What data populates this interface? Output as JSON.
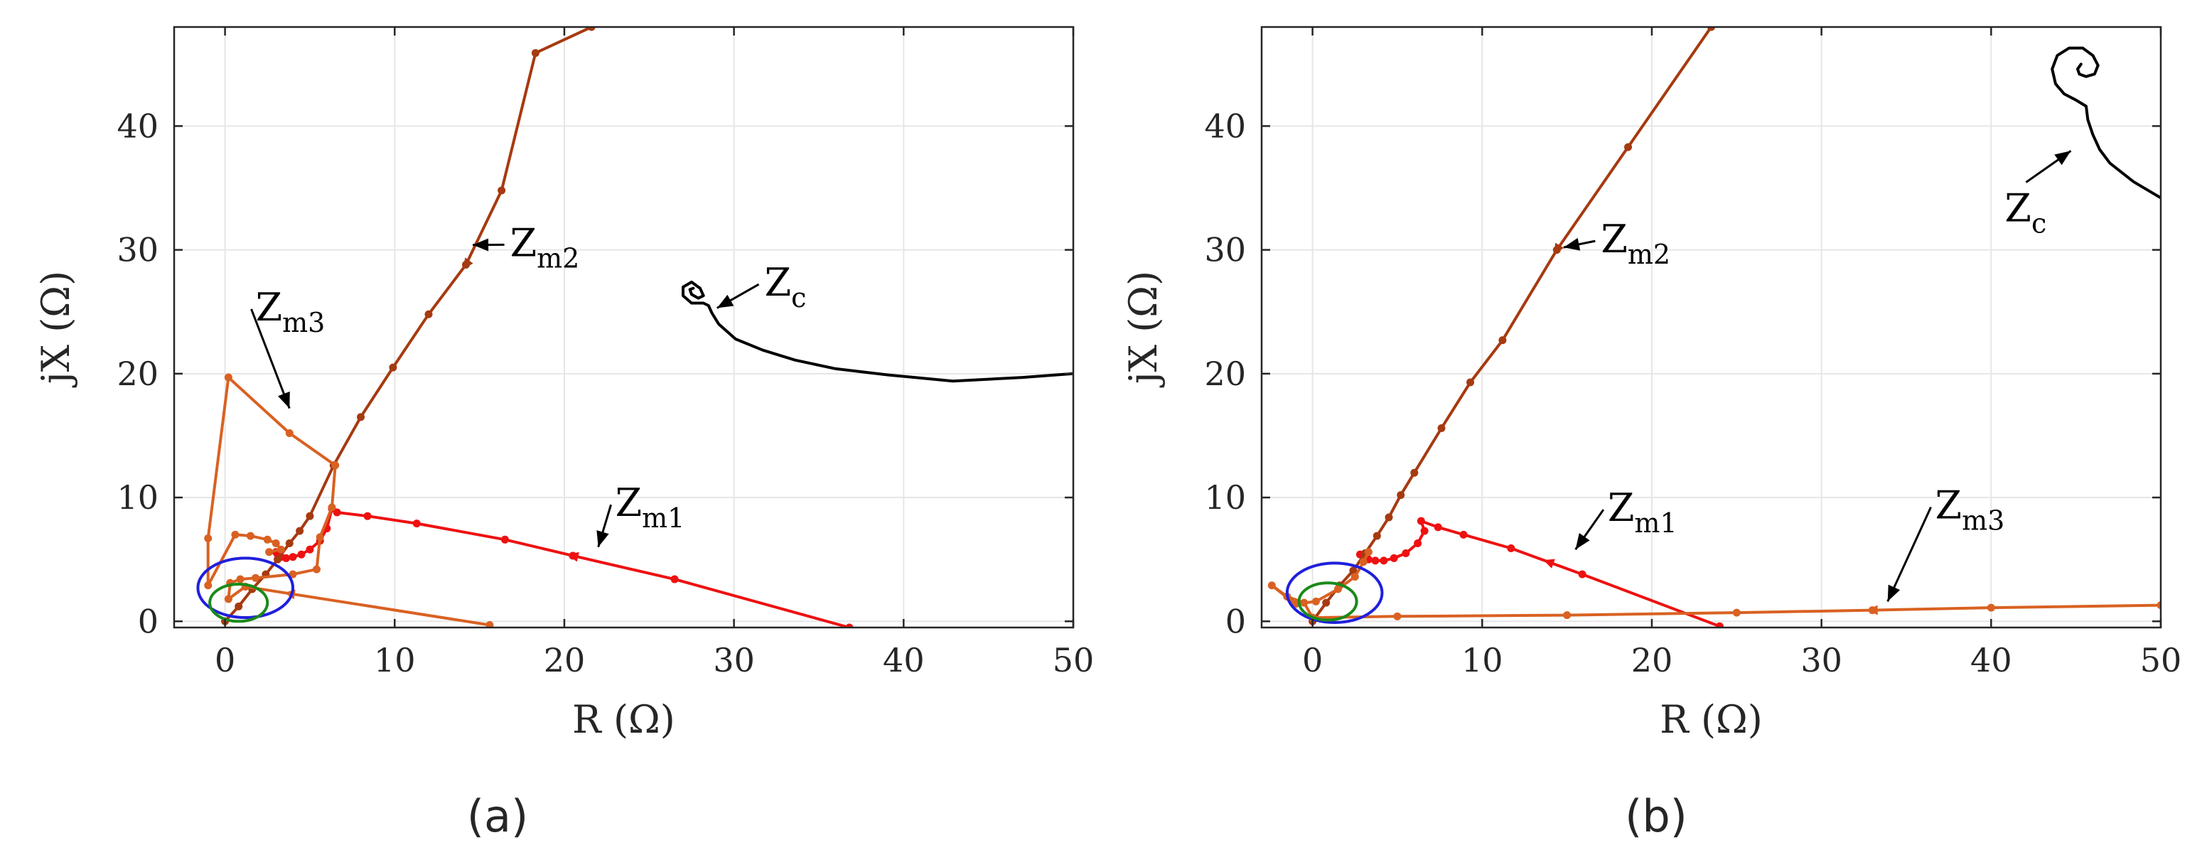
{
  "colors": {
    "Zm1": "#ee1111",
    "Zm2": "#a63a10",
    "Zm3": "#d96122",
    "Zc": "#000000",
    "blue_circle": "#1f1fdd",
    "green_circle": "#1a8a1a",
    "grid": "#e6e6e6",
    "axes": "#262626"
  },
  "chart_data": [
    {
      "type": "line",
      "panel_label": "(a)",
      "xlabel": "R (Ω)",
      "ylabel": "jX (Ω)",
      "xlim": [
        -3,
        50
      ],
      "ylim": [
        -0.5,
        48
      ],
      "xticks": [
        0,
        10,
        20,
        30,
        40,
        50
      ],
      "yticks": [
        0,
        10,
        20,
        30,
        40
      ],
      "grid": true,
      "series": [
        {
          "name": "Z_m1",
          "x": [
            36.8,
            26.5,
            20.5,
            16.5,
            11.3,
            8.4,
            6.6,
            6.3,
            6.0,
            5.6,
            5.0,
            4.5,
            4.0,
            3.6,
            3.3,
            3.1,
            3.0
          ],
          "y": [
            -0.5,
            3.4,
            5.3,
            6.6,
            7.9,
            8.5,
            8.8,
            9.1,
            7.5,
            6.5,
            5.8,
            5.4,
            5.2,
            5.1,
            5.2,
            5.4,
            5.6
          ],
          "direction_arrow_x": 20.5
        },
        {
          "name": "Z_m2",
          "x": [
            0.0,
            0.8,
            1.6,
            2.4,
            3.1,
            3.8,
            4.4,
            5.0,
            6.4,
            8.0,
            9.9,
            12.0,
            14.2,
            16.3,
            18.3,
            21.6
          ],
          "y": [
            0.0,
            1.2,
            2.6,
            3.8,
            5.0,
            6.3,
            7.3,
            8.5,
            12.6,
            16.5,
            20.5,
            24.8,
            28.8,
            34.8,
            45.9,
            48.0
          ],
          "direction_arrow_x": 14.2
        },
        {
          "name": "Z_m3",
          "x": [
            15.6,
            1.2,
            0.2,
            0.3,
            0.9,
            1.8,
            4.0,
            5.4,
            5.6,
            6.3,
            6.5,
            3.8,
            0.2,
            -1.0,
            -1.0,
            0.6,
            1.5,
            2.5,
            3.0,
            3.3,
            2.6
          ],
          "y": [
            -0.3,
            2.8,
            1.8,
            3.1,
            3.4,
            3.5,
            3.8,
            4.2,
            6.8,
            9.2,
            12.6,
            15.2,
            19.7,
            6.7,
            2.9,
            7.0,
            6.9,
            6.6,
            6.3,
            5.8,
            5.6
          ],
          "direction_arrow_x": 3.8
        },
        {
          "name": "Z_c",
          "x": [
            50.0,
            47.0,
            42.9,
            39.1,
            36.0,
            33.6,
            31.7,
            30.1,
            29.1,
            28.7,
            28.5,
            28.2,
            27.5,
            27.0,
            27.0,
            27.5,
            28.0,
            28.2,
            27.9,
            27.5,
            27.4,
            27.6
          ],
          "y": [
            20.0,
            19.7,
            19.4,
            19.9,
            20.4,
            21.1,
            21.9,
            22.8,
            24.0,
            24.9,
            25.5,
            25.7,
            25.7,
            26.3,
            27.0,
            27.4,
            26.9,
            26.3,
            26.1,
            26.4,
            26.8,
            26.9
          ]
        },
        {
          "name": "blue_circle",
          "center": [
            1.2,
            2.7
          ],
          "radius_x": 2.8,
          "radius_y": 2.4
        },
        {
          "name": "green_circle",
          "center": [
            0.8,
            1.5
          ],
          "radius_x": 1.7,
          "radius_y": 1.5
        }
      ],
      "annotations": [
        {
          "label_main": "Z",
          "label_sub": "m2",
          "text_x": 16.8,
          "text_y": 29.5,
          "arrow_to": [
            14.6,
            30.4
          ]
        },
        {
          "label_main": "Z",
          "label_sub": "c",
          "text_x": 31.8,
          "text_y": 26.3,
          "arrow_to": [
            29.0,
            25.3
          ]
        },
        {
          "label_main": "Z",
          "label_sub": "m3",
          "text_x": 1.8,
          "text_y": 24.3,
          "arrow_to": [
            3.8,
            17.2
          ]
        },
        {
          "label_main": "Z",
          "label_sub": "m1",
          "text_x": 23.0,
          "text_y": 8.5,
          "arrow_to": [
            22.0,
            6.0
          ]
        }
      ]
    },
    {
      "type": "line",
      "panel_label": "(b)",
      "xlabel": "R (Ω)",
      "ylabel": "jX (Ω)",
      "xlim": [
        -3,
        50
      ],
      "ylim": [
        -0.5,
        48
      ],
      "xticks": [
        0,
        10,
        20,
        30,
        40,
        50
      ],
      "yticks": [
        0,
        10,
        20,
        30,
        40
      ],
      "grid": true,
      "series": [
        {
          "name": "Z_m1",
          "x": [
            24.0,
            15.9,
            11.7,
            8.9,
            7.4,
            6.4,
            6.6,
            6.2,
            5.5,
            4.8,
            4.2,
            3.7,
            3.3,
            3.0,
            2.8
          ],
          "y": [
            -0.4,
            3.8,
            5.9,
            7.0,
            7.6,
            8.1,
            7.3,
            6.3,
            5.5,
            5.1,
            4.9,
            4.9,
            5.0,
            5.2,
            5.4
          ],
          "direction_arrow_x": 13.9
        },
        {
          "name": "Z_m2",
          "x": [
            0.0,
            0.8,
            1.6,
            2.4,
            3.1,
            3.8,
            4.5,
            5.2,
            6.0,
            7.6,
            9.3,
            11.2,
            14.4,
            18.6,
            23.5
          ],
          "y": [
            0.0,
            1.5,
            2.9,
            4.1,
            5.5,
            6.9,
            8.4,
            10.2,
            12.0,
            15.6,
            19.3,
            22.7,
            30.0,
            38.3,
            48.0
          ],
          "direction_arrow_x": 14.4
        },
        {
          "name": "Z_m3",
          "x": [
            50.0,
            40.0,
            33.0,
            25.0,
            15.0,
            5.0,
            0.0,
            -0.5,
            -1.5,
            -2.4,
            -1.0,
            0.2,
            1.5,
            2.5,
            3.0,
            3.3
          ],
          "y": [
            1.3,
            1.1,
            0.9,
            0.7,
            0.5,
            0.4,
            0.3,
            1.5,
            2.0,
            2.9,
            1.4,
            1.6,
            2.6,
            3.6,
            4.8,
            5.6
          ],
          "direction_arrow_x": 33.0
        },
        {
          "name": "Z_c",
          "x": [
            50.0,
            48.4,
            47.0,
            46.4,
            46.0,
            45.7,
            45.6,
            45.0,
            44.3,
            43.8,
            43.6,
            43.9,
            44.6,
            45.4,
            46.0,
            46.3,
            46.1,
            45.6,
            45.2,
            45.1,
            45.3
          ],
          "y": [
            34.2,
            35.5,
            37.0,
            38.1,
            39.3,
            40.5,
            41.6,
            42.1,
            42.6,
            43.4,
            44.6,
            45.7,
            46.3,
            46.3,
            45.7,
            44.9,
            44.2,
            44.0,
            44.2,
            44.6,
            45.0
          ]
        },
        {
          "name": "blue_circle",
          "center": [
            1.3,
            2.3
          ],
          "radius_x": 2.8,
          "radius_y": 2.4
        },
        {
          "name": "green_circle",
          "center": [
            0.9,
            1.6
          ],
          "radius_x": 1.7,
          "radius_y": 1.5
        }
      ],
      "annotations": [
        {
          "label_main": "Z",
          "label_sub": "m2",
          "text_x": 17.0,
          "text_y": 29.8,
          "arrow_to": [
            14.8,
            30.2
          ]
        },
        {
          "label_main": "Z",
          "label_sub": "c",
          "text_x": 40.8,
          "text_y": 32.3,
          "arrow_to": [
            44.7,
            38.0
          ]
        },
        {
          "label_main": "Z",
          "label_sub": "m1",
          "text_x": 17.4,
          "text_y": 8.1,
          "arrow_to": [
            15.5,
            5.8
          ]
        },
        {
          "label_main": "Z",
          "label_sub": "m3",
          "text_x": 36.7,
          "text_y": 8.3,
          "arrow_to": [
            33.9,
            1.6
          ]
        }
      ]
    }
  ]
}
